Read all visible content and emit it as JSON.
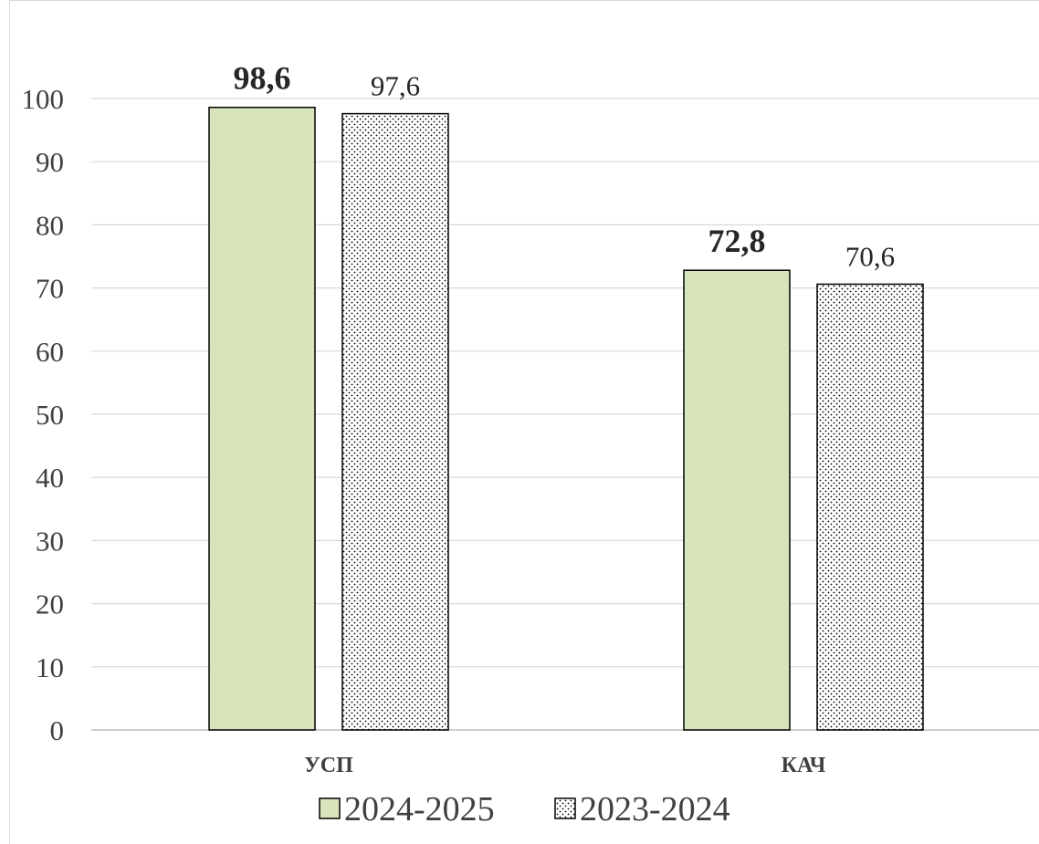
{
  "chart_data": {
    "type": "bar",
    "categories": [
      "УСП",
      "КАЧ"
    ],
    "series": [
      {
        "name": "2024-2025",
        "values": [
          98.6,
          72.8
        ],
        "labels": [
          "98,6",
          "72,8"
        ],
        "color": "#d8e4bc",
        "pattern": "solid",
        "label_weight": "bold"
      },
      {
        "name": "2023-2024",
        "values": [
          97.6,
          70.6
        ],
        "labels": [
          "97,6",
          "70,6"
        ],
        "color": "#ffffff",
        "pattern": "dotted",
        "label_weight": "normal"
      }
    ],
    "ylim": [
      0,
      100
    ],
    "yticks": [
      "0",
      "10",
      "20",
      "30",
      "40",
      "50",
      "60",
      "70",
      "80",
      "90",
      "100"
    ],
    "grid": true,
    "legend": "bottom",
    "title": "",
    "xlabel": "",
    "ylabel": ""
  }
}
